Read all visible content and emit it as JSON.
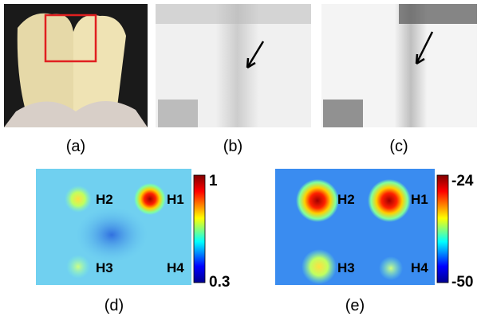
{
  "panels": [
    {
      "label": "(a)"
    },
    {
      "label": "(b)"
    },
    {
      "label": "(c)"
    },
    {
      "label": "(d)",
      "spots": [
        "H1",
        "H2",
        "H3",
        "H4"
      ],
      "colorbar": {
        "max": "1",
        "min": "0.3"
      }
    },
    {
      "label": "(e)",
      "spots": [
        "H1",
        "H2",
        "H3",
        "H4"
      ],
      "colorbar": {
        "max": "-24",
        "min": "-50"
      }
    }
  ]
}
